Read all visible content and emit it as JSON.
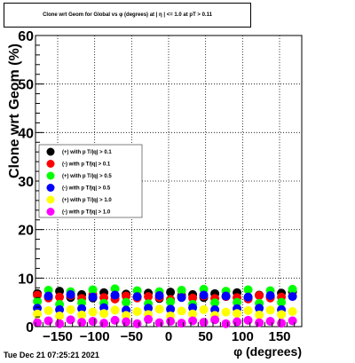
{
  "header": {
    "title": "Clone wrt Geom for Global vs φ (degrees) at | η | <= 1.0 at pT > 0.11"
  },
  "footer": {
    "timestamp": "Tue Dec 21 07:25:21 2021"
  },
  "colors": {
    "s1": "#000000",
    "s2": "#ff0000",
    "s3": "#00ff00",
    "s4": "#0000ff",
    "s5": "#ffff00",
    "s6": "#ff00ff"
  },
  "chart_data": {
    "type": "scatter",
    "title": "Clone wrt Geom for Global vs φ (degrees) at | η | <= 1.0 at pT > 0.11",
    "xlabel": "φ (degrees)",
    "ylabel": "Clone wrt Geom (%)",
    "xlim": [
      -180,
      180
    ],
    "ylim": [
      0,
      60
    ],
    "grid": true,
    "legend_position": "left-middle",
    "xticks": [
      -150,
      -100,
      -50,
      0,
      50,
      100,
      150
    ],
    "xtick_labels": [
      "−150",
      "−100",
      "−50",
      "0",
      "50",
      "100",
      "150"
    ],
    "yticks": [
      0,
      10,
      20,
      30,
      40,
      50,
      60
    ],
    "ytick_labels": [
      "0",
      "10",
      "20",
      "30",
      "40",
      "50",
      "60"
    ],
    "x": [
      -177.5,
      -162.5,
      -147.5,
      -132.5,
      -117.5,
      -102.5,
      -87.5,
      -72.5,
      -57.5,
      -42.5,
      -27.5,
      -12.5,
      2.5,
      17.5,
      32.5,
      47.5,
      62.5,
      77.5,
      92.5,
      107.5,
      122.5,
      137.5,
      152.5,
      167.5
    ],
    "series": [
      {
        "name": "(+) with p T/|q| > 0.1",
        "color": "#000000",
        "values": [
          6.8,
          6.2,
          7.3,
          6.0,
          6.6,
          5.9,
          7.0,
          6.3,
          6.7,
          6.1,
          6.9,
          5.8,
          7.1,
          6.4,
          6.6,
          6.0,
          6.8,
          6.2,
          7.0,
          5.9,
          6.5,
          6.1,
          6.9,
          7.2
        ]
      },
      {
        "name": "(-) with p T/|q| > 0.1",
        "color": "#ff0000",
        "values": [
          6.5,
          5.9,
          6.1,
          6.4,
          5.8,
          6.6,
          6.0,
          5.7,
          6.3,
          5.9,
          6.2,
          6.0,
          5.6,
          6.1,
          5.9,
          6.3,
          5.8,
          6.2,
          6.0,
          5.7,
          6.4,
          5.9,
          6.1,
          6.3
        ]
      },
      {
        "name": "(+) with p T/|q| > 0.5",
        "color": "#00ff00",
        "values": [
          5.2,
          7.5,
          4.6,
          7.2,
          4.9,
          7.6,
          4.8,
          7.8,
          5.0,
          7.4,
          4.7,
          7.2,
          5.1,
          7.5,
          4.6,
          7.7,
          4.9,
          7.3,
          5.0,
          7.6,
          4.8,
          7.4,
          5.0,
          7.7
        ]
      },
      {
        "name": "(-) with p T/|q| > 0.5",
        "color": "#0000ff",
        "values": [
          3.8,
          6.3,
          3.5,
          6.6,
          3.7,
          6.1,
          3.9,
          6.5,
          3.4,
          6.2,
          3.8,
          6.4,
          3.6,
          6.0,
          3.9,
          6.5,
          3.5,
          6.3,
          3.7,
          6.1,
          3.8,
          6.4,
          3.5,
          6.2
        ]
      },
      {
        "name": "(+) with p T/|q| > 1.0",
        "color": "#ffff00",
        "values": [
          2.6,
          3.3,
          2.2,
          3.5,
          2.4,
          3.0,
          2.7,
          3.4,
          2.3,
          3.1,
          2.5,
          3.6,
          2.2,
          3.2,
          2.6,
          3.5,
          2.3,
          3.0,
          2.7,
          3.3,
          2.4,
          3.4,
          2.5,
          3.1
        ]
      },
      {
        "name": "(-) with p T/|q| > 1.0",
        "color": "#ff00ff",
        "values": [
          0.8,
          1.2,
          0.6,
          1.4,
          0.9,
          1.1,
          0.7,
          1.3,
          1.0,
          0.6,
          1.5,
          0.8,
          1.1,
          0.7,
          1.2,
          0.9,
          1.4,
          0.6,
          1.0,
          1.3,
          0.8,
          1.1,
          0.7,
          1.2
        ]
      }
    ]
  }
}
